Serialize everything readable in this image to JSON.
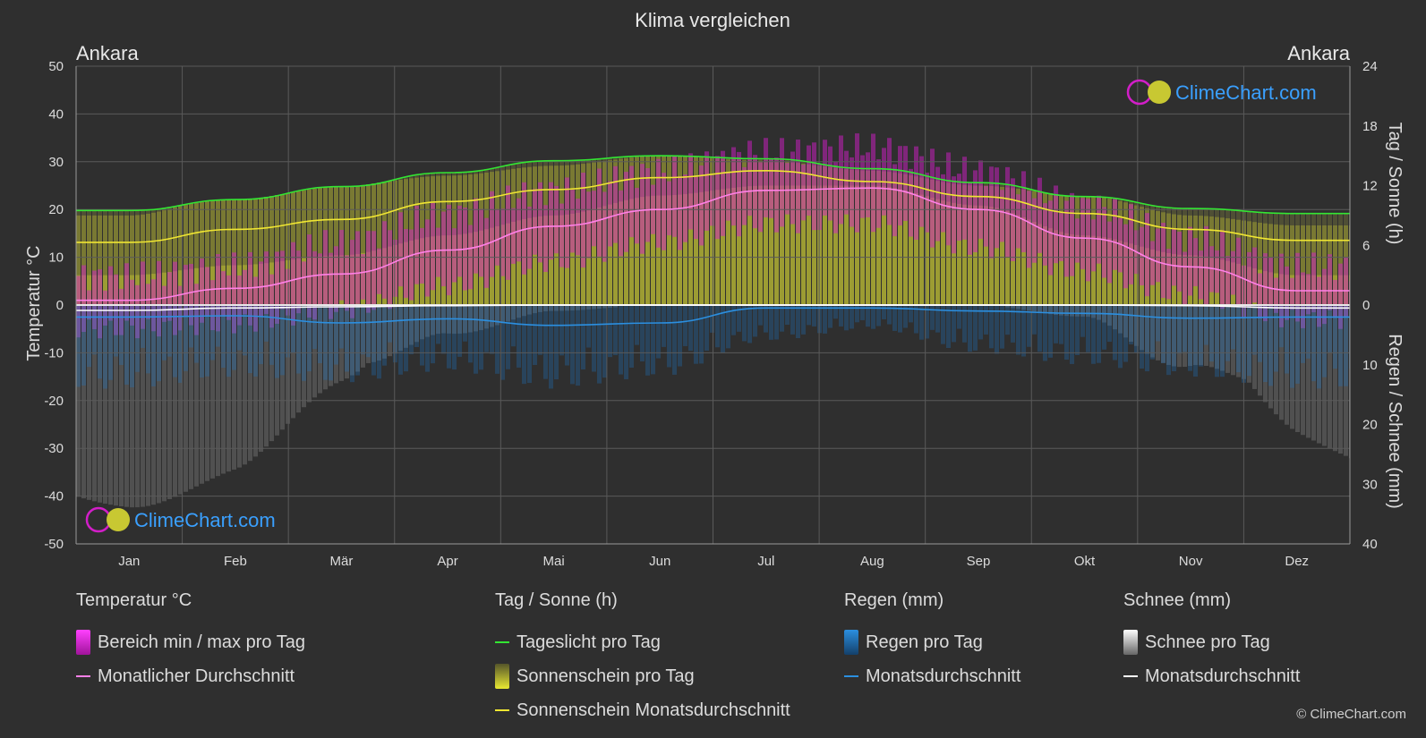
{
  "title": "Klima vergleichen",
  "location_left": "Ankara",
  "location_right": "Ankara",
  "copyright": "© ClimeChart.com",
  "logo_text": "ClimeChart.com",
  "axes": {
    "left_label": "Temperatur °C",
    "right_top_label": "Tag / Sonne (h)",
    "right_bottom_label": "Regen / Schnee (mm)"
  },
  "colors": {
    "background": "#2f2f2f",
    "temp_range": "#d21ec8",
    "temp_avg": "#ff80e8",
    "daylight": "#33e633",
    "sunshine_fill": "#c8c832",
    "sunshine_avg": "#f0e632",
    "rain": "#1e78c8",
    "rain_avg": "#2b8fe0",
    "snow": "#c8c8c8",
    "snow_avg": "#ffffff",
    "logo": "#3aa0ff"
  },
  "chart_data": {
    "type": "line",
    "months": [
      "Jan",
      "Feb",
      "Mär",
      "Apr",
      "Mai",
      "Jun",
      "Jul",
      "Aug",
      "Sep",
      "Okt",
      "Nov",
      "Dez"
    ],
    "temperature_axis": {
      "ylim": [
        -50,
        50
      ],
      "ticks": [
        50,
        40,
        30,
        20,
        10,
        0,
        -10,
        -20,
        -30,
        -40,
        -50
      ]
    },
    "sun_axis": {
      "ylim": [
        0,
        24
      ],
      "ticks": [
        24,
        18,
        12,
        6,
        0
      ]
    },
    "precip_axis": {
      "ylim": [
        0,
        40
      ],
      "ticks": [
        0,
        10,
        20,
        30,
        40
      ]
    },
    "series": [
      {
        "name": "Monatlicher Durchschnitt",
        "key": "temp_avg",
        "values": [
          1.0,
          3.5,
          6.5,
          11.5,
          16.5,
          20.0,
          24.0,
          24.5,
          20.0,
          14.0,
          8.0,
          3.0
        ]
      },
      {
        "name": "Tageslicht pro Tag",
        "key": "daylight",
        "values": [
          9.5,
          10.6,
          11.9,
          13.3,
          14.5,
          15.0,
          14.7,
          13.7,
          12.3,
          10.9,
          9.7,
          9.2
        ]
      },
      {
        "name": "Sonnenschein Monatsdurchschnitt",
        "key": "sunshine_avg",
        "values": [
          6.3,
          7.6,
          8.6,
          10.4,
          11.6,
          12.8,
          13.5,
          12.4,
          10.9,
          9.2,
          7.6,
          6.5
        ]
      },
      {
        "name": "Regen Monatsdurchschnitt",
        "key": "rain_avg",
        "values": [
          2.0,
          1.8,
          3.0,
          2.3,
          3.4,
          3.0,
          0.5,
          0.5,
          1.0,
          1.4,
          2.2,
          2.0
        ]
      },
      {
        "name": "Schnee Monatsdurchschnitt",
        "key": "snow_avg",
        "values": [
          0.9,
          0.5,
          0.3,
          0.1,
          0,
          0,
          0,
          0,
          0,
          0,
          0.1,
          0.5
        ]
      }
    ],
    "temp_range_daily": {
      "min": [
        -5,
        -4,
        -1,
        4,
        9,
        13,
        17,
        17,
        12,
        7,
        2,
        -3
      ],
      "max": [
        6,
        8,
        13,
        19,
        24,
        28,
        32,
        33,
        28,
        21,
        14,
        8
      ]
    },
    "sunshine_daily_range": {
      "low": [
        3,
        4,
        5,
        7,
        9,
        11,
        12,
        12,
        10,
        7,
        5,
        3
      ],
      "high": [
        9,
        11,
        12,
        13,
        14,
        15,
        14.5,
        13.5,
        12,
        11,
        9,
        8
      ]
    },
    "rain_daily_extent": [
      14,
      12,
      13,
      11,
      14,
      12,
      6,
      4,
      8,
      10,
      12,
      14
    ],
    "snow_daily_extent": [
      34,
      30,
      20,
      6,
      1,
      0,
      0,
      0,
      0,
      2,
      14,
      30
    ]
  },
  "legend": {
    "temperature": {
      "title": "Temperatur °C",
      "items": [
        "Bereich min / max pro Tag",
        "Monatlicher Durchschnitt"
      ]
    },
    "sun": {
      "title": "Tag / Sonne (h)",
      "items": [
        "Tageslicht pro Tag",
        "Sonnenschein pro Tag",
        "Sonnenschein Monatsdurchschnitt"
      ]
    },
    "rain": {
      "title": "Regen (mm)",
      "items": [
        "Regen pro Tag",
        "Monatsdurchschnitt"
      ]
    },
    "snow": {
      "title": "Schnee (mm)",
      "items": [
        "Schnee pro Tag",
        "Monatsdurchschnitt"
      ]
    }
  }
}
